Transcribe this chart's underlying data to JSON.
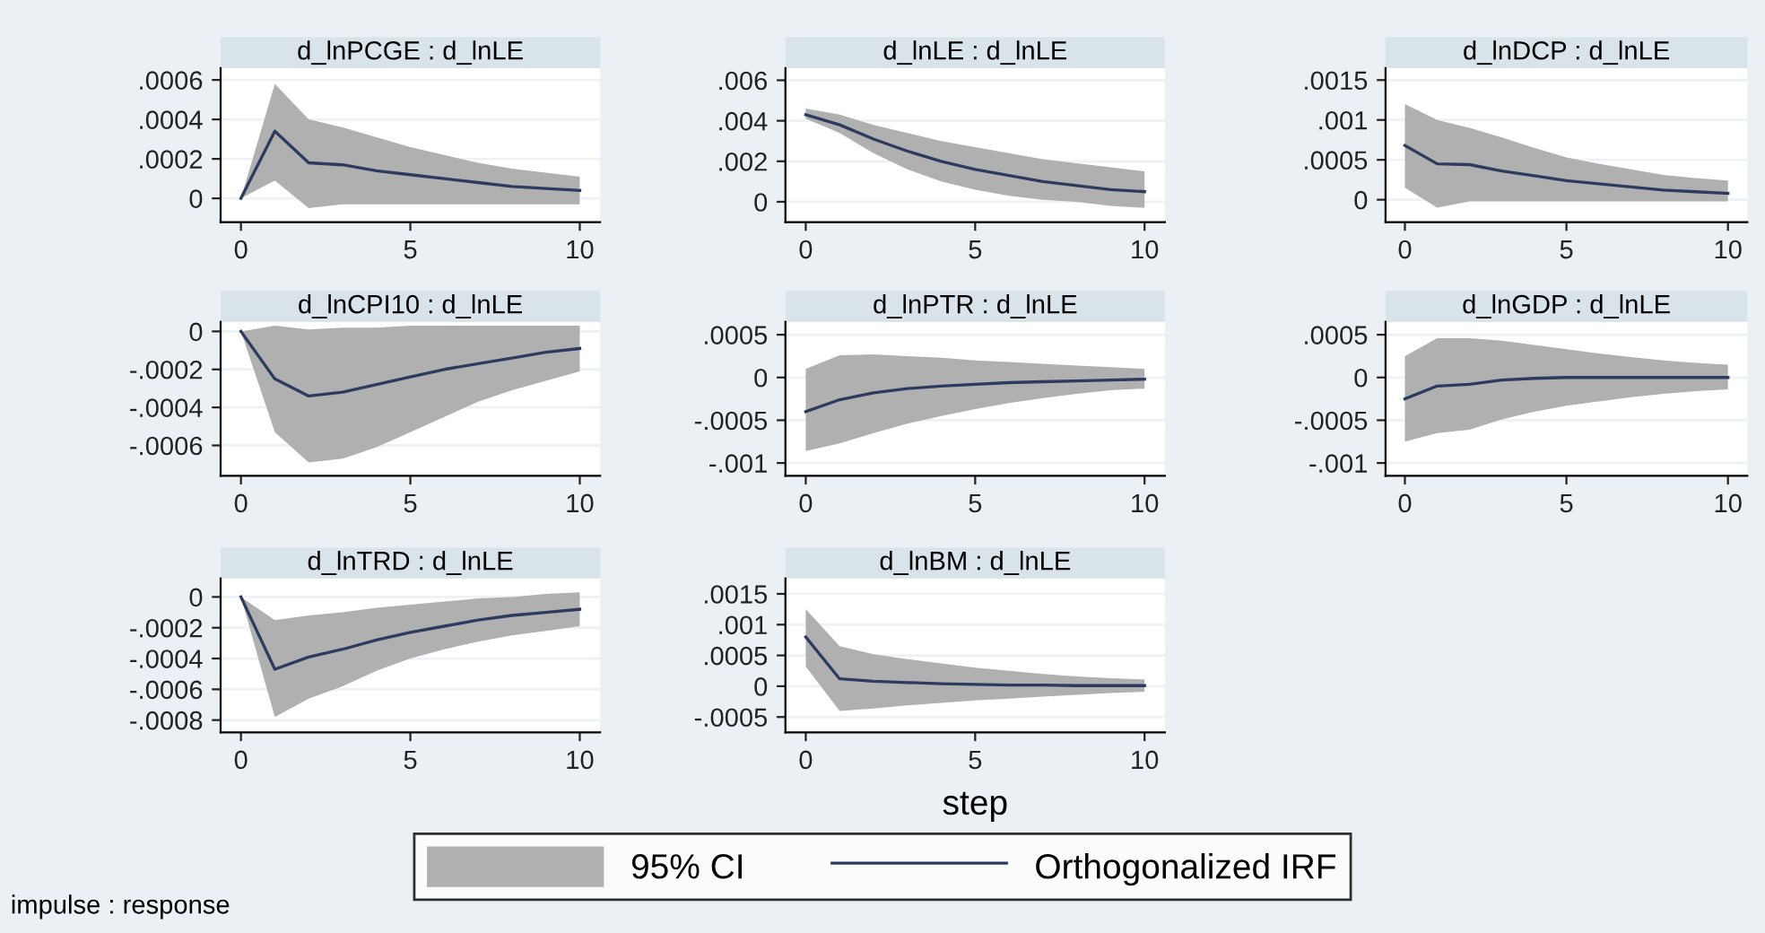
{
  "chart_data": [
    {
      "type": "line",
      "title": "d_lnPCGE : d_lnLE",
      "x": [
        0,
        1,
        2,
        3,
        4,
        5,
        6,
        7,
        8,
        9,
        10
      ],
      "xlim": [
        -0.6,
        10.6
      ],
      "xticks": [
        0,
        5,
        10
      ],
      "ylim": [
        -0.00012,
        0.00066
      ],
      "yticks": [
        {
          "value": 0,
          "label": "0"
        },
        {
          "value": 0.0002,
          "label": ".0002"
        },
        {
          "value": 0.0004,
          "label": ".0004"
        },
        {
          "value": 0.0006,
          "label": ".0006"
        }
      ],
      "grid": "y",
      "series": [
        {
          "color": "#2e3b5e",
          "values": [
            0,
            0.00034,
            0.00018,
            0.00017,
            0.00014,
            0.00012,
            0.0001,
            8e-05,
            6e-05,
            5e-05,
            4e-05
          ],
          "lower": [
            0,
            9e-05,
            -5e-05,
            -3e-05,
            -3e-05,
            -3e-05,
            -3e-05,
            -3e-05,
            -3e-05,
            -3e-05,
            -3e-05
          ],
          "upper": [
            0,
            0.00058,
            0.0004,
            0.00036,
            0.00031,
            0.00026,
            0.00022,
            0.00018,
            0.00015,
            0.00013,
            0.00011
          ]
        }
      ]
    },
    {
      "type": "line",
      "title": "d_lnLE : d_lnLE",
      "x": [
        0,
        1,
        2,
        3,
        4,
        5,
        6,
        7,
        8,
        9,
        10
      ],
      "xlim": [
        -0.6,
        10.6
      ],
      "xticks": [
        0,
        5,
        10
      ],
      "ylim": [
        -0.001,
        0.0066
      ],
      "yticks": [
        {
          "value": 0,
          "label": "0"
        },
        {
          "value": 0.002,
          "label": ".002"
        },
        {
          "value": 0.004,
          "label": ".004"
        },
        {
          "value": 0.006,
          "label": ".006"
        }
      ],
      "grid": "y",
      "series": [
        {
          "color": "#2e3b5e",
          "values": [
            0.0043,
            0.0038,
            0.0031,
            0.0025,
            0.002,
            0.0016,
            0.0013,
            0.001,
            0.0008,
            0.0006,
            0.0005
          ],
          "lower": [
            0.0041,
            0.0034,
            0.0024,
            0.0016,
            0.001,
            0.0006,
            0.0003,
            0.0001,
            0,
            -0.0002,
            -0.0003
          ],
          "upper": [
            0.0046,
            0.0043,
            0.0038,
            0.0034,
            0.003,
            0.0027,
            0.0024,
            0.0021,
            0.0019,
            0.0017,
            0.0015
          ]
        }
      ]
    },
    {
      "type": "line",
      "title": "d_lnDCP : d_lnLE",
      "x": [
        0,
        1,
        2,
        3,
        4,
        5,
        6,
        7,
        8,
        9,
        10
      ],
      "xlim": [
        -0.6,
        10.6
      ],
      "xticks": [
        0,
        5,
        10
      ],
      "ylim": [
        -0.00028,
        0.00165
      ],
      "yticks": [
        {
          "value": 0,
          "label": "0"
        },
        {
          "value": 0.0005,
          "label": ".0005"
        },
        {
          "value": 0.001,
          "label": ".001"
        },
        {
          "value": 0.0015,
          "label": ".0015"
        }
      ],
      "grid": "y",
      "series": [
        {
          "color": "#2e3b5e",
          "values": [
            0.00068,
            0.00045,
            0.00044,
            0.00036,
            0.0003,
            0.00024,
            0.0002,
            0.00016,
            0.00012,
            0.0001,
            8e-05
          ],
          "lower": [
            0.00015,
            -0.0001,
            -2e-05,
            -2e-05,
            -2e-05,
            -2e-05,
            -2e-05,
            -2e-05,
            -2e-05,
            -2e-05,
            -2e-05
          ],
          "upper": [
            0.0012,
            0.001,
            0.0009,
            0.00078,
            0.00065,
            0.00053,
            0.00045,
            0.00038,
            0.00031,
            0.00027,
            0.00024
          ]
        }
      ]
    },
    {
      "type": "line",
      "title": "d_lnCPI10 : d_lnLE",
      "x": [
        0,
        1,
        2,
        3,
        4,
        5,
        6,
        7,
        8,
        9,
        10
      ],
      "xlim": [
        -0.6,
        10.6
      ],
      "xticks": [
        0,
        5,
        10
      ],
      "ylim": [
        -0.00076,
        5e-05
      ],
      "yticks": [
        {
          "value": -0.0006,
          "label": "-.0006"
        },
        {
          "value": -0.0004,
          "label": "-.0004"
        },
        {
          "value": -0.0002,
          "label": "-.0002"
        },
        {
          "value": 0,
          "label": "0"
        }
      ],
      "grid": "y",
      "series": [
        {
          "color": "#2e3b5e",
          "values": [
            0,
            -0.00025,
            -0.00034,
            -0.00032,
            -0.00028,
            -0.00024,
            -0.0002,
            -0.00017,
            -0.00014,
            -0.00011,
            -9e-05
          ],
          "lower": [
            0,
            -0.00053,
            -0.00069,
            -0.00067,
            -0.00061,
            -0.00053,
            -0.00045,
            -0.00037,
            -0.00031,
            -0.00026,
            -0.00021
          ],
          "upper": [
            0,
            3e-05,
            1e-05,
            2e-05,
            2e-05,
            3e-05,
            3e-05,
            3e-05,
            3e-05,
            3e-05,
            3e-05
          ]
        }
      ]
    },
    {
      "type": "line",
      "title": "d_lnPTR : d_lnLE",
      "x": [
        0,
        1,
        2,
        3,
        4,
        5,
        6,
        7,
        8,
        9,
        10
      ],
      "xlim": [
        -0.6,
        10.6
      ],
      "xticks": [
        0,
        5,
        10
      ],
      "ylim": [
        -0.00115,
        0.00065
      ],
      "yticks": [
        {
          "value": -0.001,
          "label": "-.001"
        },
        {
          "value": -0.0005,
          "label": "-.0005"
        },
        {
          "value": 0,
          "label": "0"
        },
        {
          "value": 0.0005,
          "label": ".0005"
        }
      ],
      "grid": "y",
      "series": [
        {
          "color": "#2e3b5e",
          "values": [
            -0.0004,
            -0.00026,
            -0.00018,
            -0.00013,
            -0.0001,
            -8e-05,
            -6e-05,
            -5e-05,
            -4e-05,
            -3e-05,
            -2e-05
          ],
          "lower": [
            -0.00086,
            -0.00077,
            -0.00065,
            -0.00054,
            -0.00045,
            -0.00037,
            -0.0003,
            -0.00024,
            -0.00019,
            -0.00015,
            -0.00013
          ],
          "upper": [
            0.0001,
            0.00026,
            0.00027,
            0.00025,
            0.00023,
            0.0002,
            0.00018,
            0.00016,
            0.00014,
            0.00012,
            0.0001
          ]
        }
      ]
    },
    {
      "type": "line",
      "title": "d_lnGDP : d_lnLE",
      "x": [
        0,
        1,
        2,
        3,
        4,
        5,
        6,
        7,
        8,
        9,
        10
      ],
      "xlim": [
        -0.6,
        10.6
      ],
      "xticks": [
        0,
        5,
        10
      ],
      "ylim": [
        -0.00115,
        0.00065
      ],
      "yticks": [
        {
          "value": -0.001,
          "label": "-.001"
        },
        {
          "value": -0.0005,
          "label": "-.0005"
        },
        {
          "value": 0,
          "label": "0"
        },
        {
          "value": 0.0005,
          "label": ".0005"
        }
      ],
      "grid": "y",
      "series": [
        {
          "color": "#2e3b5e",
          "values": [
            -0.00025,
            -0.0001,
            -8e-05,
            -3e-05,
            -1e-05,
            0,
            0,
            0,
            0,
            0,
            0
          ],
          "lower": [
            -0.00075,
            -0.00065,
            -0.00061,
            -0.00049,
            -0.0004,
            -0.00033,
            -0.00028,
            -0.00023,
            -0.00019,
            -0.00016,
            -0.00014
          ],
          "upper": [
            0.00025,
            0.00046,
            0.00046,
            0.00043,
            0.00038,
            0.00033,
            0.00028,
            0.00024,
            0.0002,
            0.00017,
            0.00015
          ]
        }
      ]
    },
    {
      "type": "line",
      "title": "d_lnTRD : d_lnLE",
      "x": [
        0,
        1,
        2,
        3,
        4,
        5,
        6,
        7,
        8,
        9,
        10
      ],
      "xlim": [
        -0.6,
        10.6
      ],
      "xticks": [
        0,
        5,
        10
      ],
      "ylim": [
        -0.00088,
        0.00012
      ],
      "yticks": [
        {
          "value": -0.0008,
          "label": "-.0008"
        },
        {
          "value": -0.0006,
          "label": "-.0006"
        },
        {
          "value": -0.0004,
          "label": "-.0004"
        },
        {
          "value": -0.0002,
          "label": "-.0002"
        },
        {
          "value": 0,
          "label": "0"
        }
      ],
      "grid": "y",
      "series": [
        {
          "color": "#2e3b5e",
          "values": [
            0,
            -0.00047,
            -0.00039,
            -0.00034,
            -0.00028,
            -0.00023,
            -0.00019,
            -0.00015,
            -0.00012,
            -0.0001,
            -8e-05
          ],
          "lower": [
            0,
            -0.00078,
            -0.00066,
            -0.00058,
            -0.00048,
            -0.0004,
            -0.00034,
            -0.00029,
            -0.00025,
            -0.00022,
            -0.00019
          ],
          "upper": [
            0,
            -0.00015,
            -0.00012,
            -0.0001,
            -7e-05,
            -5e-05,
            -3e-05,
            -1e-05,
            0,
            2e-05,
            3e-05
          ]
        }
      ]
    },
    {
      "type": "line",
      "title": "d_lnBM : d_lnLE",
      "xlabel": "step",
      "x": [
        0,
        1,
        2,
        3,
        4,
        5,
        6,
        7,
        8,
        9,
        10
      ],
      "xlim": [
        -0.6,
        10.6
      ],
      "xticks": [
        0,
        5,
        10
      ],
      "ylim": [
        -0.00075,
        0.00175
      ],
      "yticks": [
        {
          "value": -0.0005,
          "label": "-.0005"
        },
        {
          "value": 0,
          "label": "0"
        },
        {
          "value": 0.0005,
          "label": ".0005"
        },
        {
          "value": 0.001,
          "label": ".001"
        },
        {
          "value": 0.0015,
          "label": ".0015"
        }
      ],
      "grid": "y",
      "legend": "bottom",
      "legend_title": "95% CI",
      "annotations": [
        "impulse : response"
      ],
      "series": [
        {
          "name": "Orthogonalized IRF",
          "color": "#2e3b5e",
          "values": [
            0.0008,
            0.00012,
            8e-05,
            6e-05,
            4e-05,
            3e-05,
            2e-05,
            2e-05,
            1e-05,
            1e-05,
            1e-05
          ],
          "lower": [
            0.00032,
            -0.0004,
            -0.00036,
            -0.00031,
            -0.00027,
            -0.00023,
            -0.0002,
            -0.00017,
            -0.00014,
            -0.00011,
            -9e-05
          ],
          "upper": [
            0.00125,
            0.00065,
            0.00052,
            0.00044,
            0.00037,
            0.0003,
            0.00025,
            0.0002,
            0.00016,
            0.00013,
            0.00011
          ]
        }
      ]
    }
  ]
}
